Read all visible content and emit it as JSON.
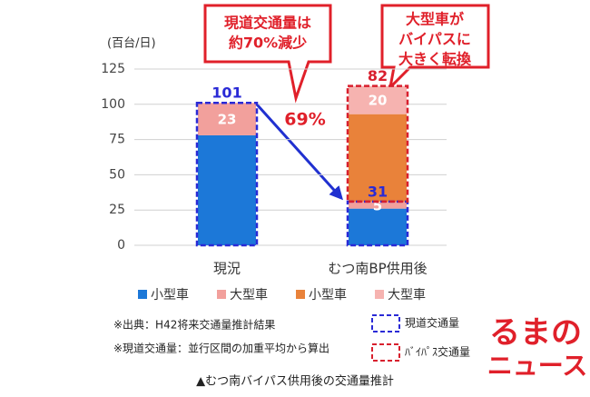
{
  "chart_data": {
    "type": "stacked-bar",
    "unit_label": "(百台/日)",
    "categories": [
      "現況",
      "むつ南BP供用後"
    ],
    "series": [
      {
        "name": "小型車",
        "color": "#1c78d8",
        "values": [
          78,
          26
        ],
        "labels": false
      },
      {
        "name": "大型車",
        "color": "#f2a09c",
        "values": [
          23,
          5
        ],
        "labels": true
      },
      {
        "name": "小型車",
        "color": "#e9823a",
        "values": [
          null,
          62
        ],
        "labels": false
      },
      {
        "name": "大型車",
        "color": "#f6b3b0",
        "values": [
          null,
          20
        ],
        "labels": true
      }
    ],
    "dashed_boxes": [
      {
        "name": "現道交通量",
        "color": "#2a2ad6",
        "values": [
          101,
          31
        ]
      },
      {
        "name": "ﾊﾞｲﾊﾟｽ交通量",
        "color": "#d8202e",
        "values": [
          null,
          82
        ]
      }
    ],
    "ylim": [
      0,
      125
    ],
    "yticks": [
      0,
      25,
      50,
      75,
      100,
      125
    ],
    "grid": true,
    "change_label": "69%",
    "callouts": [
      [
        "現道交通量は",
        "約70%減少"
      ],
      [
        "大型車が",
        "バイパスに",
        "大きく転換"
      ]
    ],
    "notes": [
      "※出典：H42将来交通量推計結果",
      "※現道交通量：並行区間の加重平均から算出"
    ],
    "caption": "▲むつ南バイパス供用後の交通量推計",
    "watermark": [
      "るまの",
      "ニュース"
    ]
  }
}
